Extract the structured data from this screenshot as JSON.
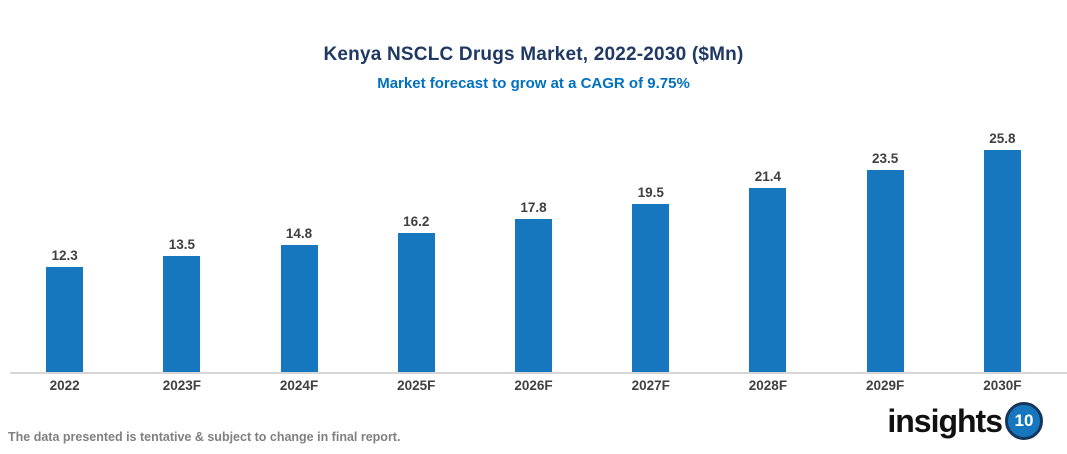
{
  "header": {
    "title": "Kenya NSCLC Drugs Market, 2022-2030 ($Mn)",
    "subtitle": "Market forecast to grow at a CAGR of 9.75%"
  },
  "chart_data": {
    "type": "bar",
    "categories": [
      "2022",
      "2023F",
      "2024F",
      "2025F",
      "2026F",
      "2027F",
      "2028F",
      "2029F",
      "2030F"
    ],
    "values": [
      12.3,
      13.5,
      14.8,
      16.2,
      17.8,
      19.5,
      21.4,
      23.5,
      25.8
    ],
    "title": "Kenya NSCLC Drugs Market, 2022-2030 ($Mn)",
    "subtitle": "Market forecast to grow at a CAGR of 9.75%",
    "xlabel": "",
    "ylabel": "",
    "ylim": [
      0,
      26
    ],
    "grid": false,
    "legend": false,
    "data_labels": true,
    "bar_color": "#1777BE"
  },
  "colors": {
    "bar": "#1777BE",
    "title": "#1F3864",
    "subtitle": "#0070C0",
    "data_label": "#404040",
    "axis_line": "#D6D6D6",
    "disclaimer": "#808080",
    "logo_badge_fill": "#1777BE",
    "logo_badge_ring": "#16365C"
  },
  "footer": {
    "disclaimer": "The data presented is tentative & subject to change in final report."
  },
  "logo": {
    "text": "insights",
    "badge": "10"
  }
}
